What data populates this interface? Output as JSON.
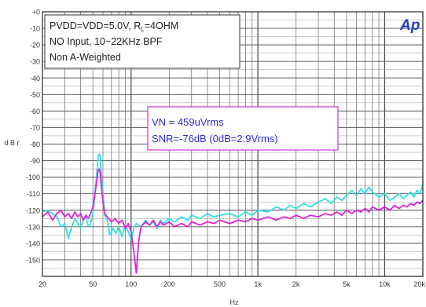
{
  "chart_data": {
    "type": "line",
    "title": "",
    "xlabel": "Hz",
    "ylabel": "d B r",
    "xscale": "log",
    "xlim": [
      20,
      20000
    ],
    "ylim": [
      -160,
      0
    ],
    "grid": true,
    "xticks": [
      {
        "value": 20,
        "label": "20"
      },
      {
        "value": 50,
        "label": "50"
      },
      {
        "value": 100,
        "label": "100"
      },
      {
        "value": 200,
        "label": "200"
      },
      {
        "value": 500,
        "label": "500"
      },
      {
        "value": 1000,
        "label": "1k"
      },
      {
        "value": 2000,
        "label": "2k"
      },
      {
        "value": 5000,
        "label": "5k"
      },
      {
        "value": 10000,
        "label": "10k"
      },
      {
        "value": 20000,
        "label": "20k"
      }
    ],
    "yticks": [
      {
        "value": 0,
        "label": "+0"
      },
      {
        "value": -10,
        "label": "-10"
      },
      {
        "value": -20,
        "label": "-20"
      },
      {
        "value": -30,
        "label": "-30"
      },
      {
        "value": -40,
        "label": "-40"
      },
      {
        "value": -50,
        "label": "-50"
      },
      {
        "value": -60,
        "label": "-60"
      },
      {
        "value": -70,
        "label": "-70"
      },
      {
        "value": -80,
        "label": "-80"
      },
      {
        "value": -90,
        "label": "-90"
      },
      {
        "value": -100,
        "label": "-100"
      },
      {
        "value": -110,
        "label": "-110"
      },
      {
        "value": -120,
        "label": "-120"
      },
      {
        "value": -130,
        "label": "-130"
      },
      {
        "value": -140,
        "label": "-140"
      },
      {
        "value": -150,
        "label": "-150"
      }
    ],
    "conditions": {
      "line1": "PVDD=VDD=5.0V, R",
      "line1_sub": "L",
      "line1_tail": "=4OHM",
      "line2": "NO Input, 10~22KHz BPF",
      "line3": "Non A-Weighted"
    },
    "callout": {
      "line1": "VN = 459uVrms",
      "line2": "SNR=-76dB (0dB=2.9Vrms)"
    },
    "logo_text": "Ap",
    "series": [
      {
        "color": "#33e0e0",
        "points": [
          [
            20,
            -121
          ],
          [
            22,
            -120
          ],
          [
            24,
            -122
          ],
          [
            26,
            -124
          ],
          [
            28,
            -130
          ],
          [
            30,
            -128
          ],
          [
            32,
            -137
          ],
          [
            34,
            -130
          ],
          [
            36,
            -125
          ],
          [
            38,
            -128
          ],
          [
            40,
            -131
          ],
          [
            42,
            -126
          ],
          [
            44,
            -124
          ],
          [
            46,
            -130
          ],
          [
            48,
            -128
          ],
          [
            50,
            -122
          ],
          [
            52,
            -110
          ],
          [
            54,
            -95
          ],
          [
            55,
            -88
          ],
          [
            56,
            -86
          ],
          [
            57,
            -87
          ],
          [
            58,
            -96
          ],
          [
            60,
            -110
          ],
          [
            62,
            -123
          ],
          [
            65,
            -126
          ],
          [
            68,
            -135
          ],
          [
            72,
            -131
          ],
          [
            76,
            -134
          ],
          [
            80,
            -130
          ],
          [
            85,
            -136
          ],
          [
            90,
            -129
          ],
          [
            95,
            -133
          ],
          [
            100,
            -138
          ],
          [
            105,
            -131
          ],
          [
            110,
            -128
          ],
          [
            120,
            -130
          ],
          [
            130,
            -126
          ],
          [
            140,
            -129
          ],
          [
            150,
            -127
          ],
          [
            160,
            -131
          ],
          [
            170,
            -126
          ],
          [
            180,
            -128
          ],
          [
            200,
            -125
          ],
          [
            220,
            -127
          ],
          [
            250,
            -124
          ],
          [
            280,
            -126
          ],
          [
            300,
            -123
          ],
          [
            350,
            -125
          ],
          [
            400,
            -122
          ],
          [
            450,
            -124
          ],
          [
            500,
            -123
          ],
          [
            600,
            -122
          ],
          [
            700,
            -124
          ],
          [
            800,
            -121
          ],
          [
            900,
            -123
          ],
          [
            1000,
            -120
          ],
          [
            1200,
            -121
          ],
          [
            1400,
            -118
          ],
          [
            1600,
            -120
          ],
          [
            1800,
            -117
          ],
          [
            2000,
            -119
          ],
          [
            2300,
            -116
          ],
          [
            2600,
            -118
          ],
          [
            3000,
            -115
          ],
          [
            3400,
            -113
          ],
          [
            3800,
            -116
          ],
          [
            4200,
            -112
          ],
          [
            4600,
            -114
          ],
          [
            5000,
            -111
          ],
          [
            5500,
            -108
          ],
          [
            6000,
            -111
          ],
          [
            6500,
            -107
          ],
          [
            7000,
            -110
          ],
          [
            7500,
            -106
          ],
          [
            8000,
            -109
          ],
          [
            9000,
            -112
          ],
          [
            10000,
            -110
          ],
          [
            11000,
            -114
          ],
          [
            12000,
            -112
          ],
          [
            13000,
            -110
          ],
          [
            14000,
            -113
          ],
          [
            15000,
            -111
          ],
          [
            16000,
            -109
          ],
          [
            17000,
            -112
          ],
          [
            18000,
            -108
          ],
          [
            19000,
            -110
          ],
          [
            20000,
            -104
          ]
        ]
      },
      {
        "color": "#dd22dd",
        "points": [
          [
            20,
            -124
          ],
          [
            22,
            -121
          ],
          [
            24,
            -126
          ],
          [
            26,
            -122
          ],
          [
            28,
            -120
          ],
          [
            30,
            -124
          ],
          [
            32,
            -122
          ],
          [
            34,
            -125
          ],
          [
            36,
            -121
          ],
          [
            38,
            -124
          ],
          [
            40,
            -122
          ],
          [
            42,
            -126
          ],
          [
            44,
            -123
          ],
          [
            46,
            -125
          ],
          [
            48,
            -122
          ],
          [
            50,
            -118
          ],
          [
            52,
            -110
          ],
          [
            54,
            -100
          ],
          [
            55,
            -96
          ],
          [
            56,
            -95
          ],
          [
            57,
            -97
          ],
          [
            58,
            -104
          ],
          [
            60,
            -115
          ],
          [
            62,
            -122
          ],
          [
            65,
            -124
          ],
          [
            70,
            -127
          ],
          [
            75,
            -125
          ],
          [
            80,
            -128
          ],
          [
            85,
            -126
          ],
          [
            90,
            -131
          ],
          [
            95,
            -128
          ],
          [
            100,
            -133
          ],
          [
            105,
            -145
          ],
          [
            110,
            -158
          ],
          [
            115,
            -138
          ],
          [
            120,
            -130
          ],
          [
            130,
            -127
          ],
          [
            140,
            -129
          ],
          [
            150,
            -126
          ],
          [
            160,
            -130
          ],
          [
            170,
            -127
          ],
          [
            180,
            -129
          ],
          [
            200,
            -127
          ],
          [
            220,
            -130
          ],
          [
            250,
            -128
          ],
          [
            280,
            -130
          ],
          [
            300,
            -127
          ],
          [
            350,
            -129
          ],
          [
            400,
            -127
          ],
          [
            450,
            -128
          ],
          [
            500,
            -126
          ],
          [
            600,
            -128
          ],
          [
            700,
            -126
          ],
          [
            800,
            -127
          ],
          [
            900,
            -125
          ],
          [
            1000,
            -126
          ],
          [
            1200,
            -124
          ],
          [
            1400,
            -126
          ],
          [
            1600,
            -124
          ],
          [
            1800,
            -125
          ],
          [
            2000,
            -123
          ],
          [
            2300,
            -125
          ],
          [
            2600,
            -123
          ],
          [
            3000,
            -124
          ],
          [
            3400,
            -122
          ],
          [
            3800,
            -123
          ],
          [
            4200,
            -121
          ],
          [
            4600,
            -123
          ],
          [
            5000,
            -120
          ],
          [
            5500,
            -122
          ],
          [
            6000,
            -120
          ],
          [
            6500,
            -121
          ],
          [
            7000,
            -119
          ],
          [
            7500,
            -121
          ],
          [
            8000,
            -118
          ],
          [
            9000,
            -120
          ],
          [
            10000,
            -118
          ],
          [
            11000,
            -120
          ],
          [
            12000,
            -117
          ],
          [
            13000,
            -119
          ],
          [
            14000,
            -117
          ],
          [
            15000,
            -118
          ],
          [
            16000,
            -116
          ],
          [
            17000,
            -117
          ],
          [
            18000,
            -115
          ],
          [
            19000,
            -116
          ],
          [
            20000,
            -114
          ]
        ]
      }
    ]
  }
}
